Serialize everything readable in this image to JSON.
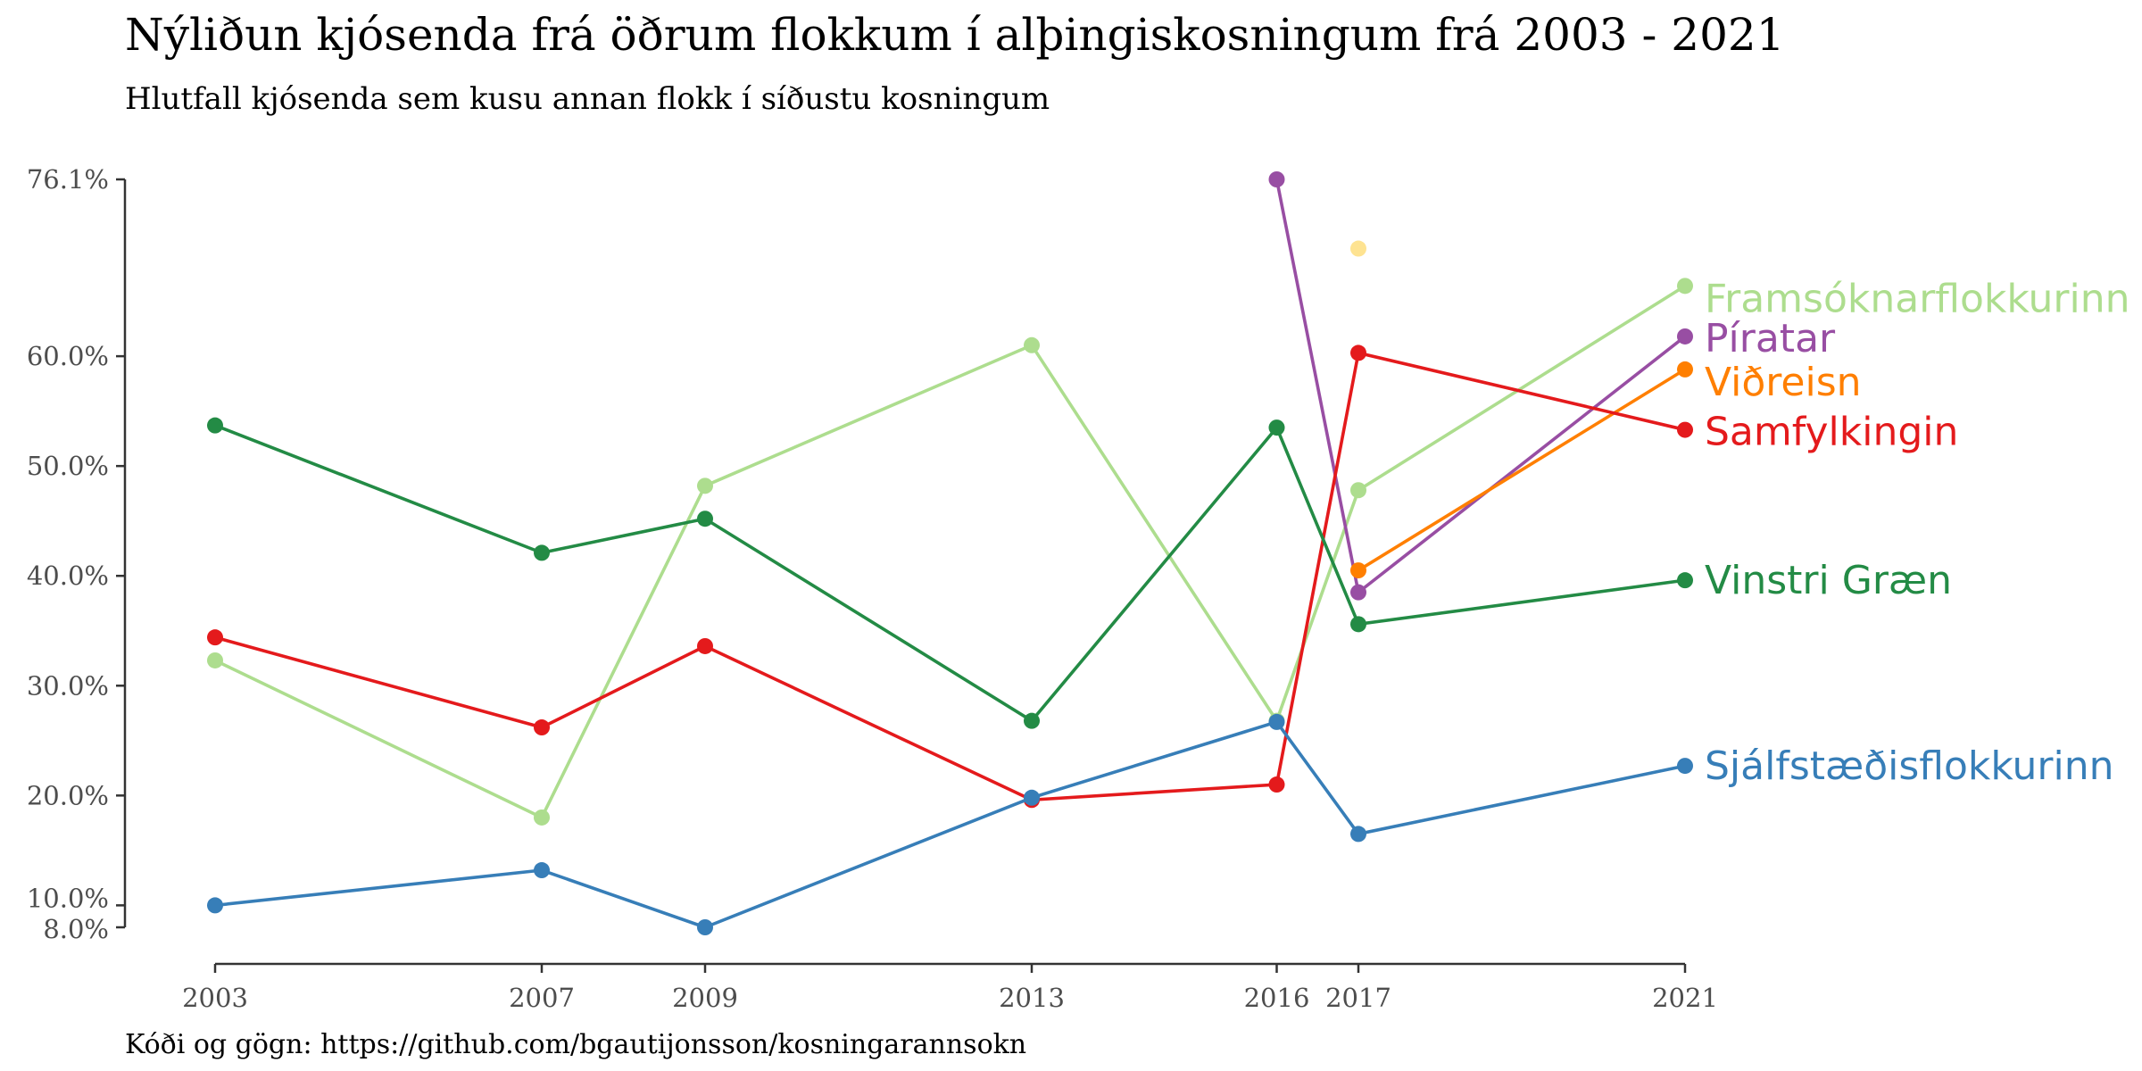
{
  "chart_data": {
    "type": "line",
    "title": "Nýliðun kjósenda frá öðrum flokkum í alþingiskosningum frá 2003 - 2021",
    "subtitle": "Hlutfall kjósenda sem kusu annan flokk í síðustu kosningum",
    "caption": "Kóði og gögn: https://github.com/bgautijonsson/kosningarannsokn",
    "xlabel": "",
    "ylabel": "",
    "x_ticks": [
      "2003",
      "2007",
      "2009",
      "2013",
      "2016",
      "2017",
      "2021"
    ],
    "xlim": [
      2003,
      2021
    ],
    "y_ticks": [
      {
        "value": 8.0,
        "label": "8.0%"
      },
      {
        "value": 10.0,
        "label": "10.0%"
      },
      {
        "value": 20.0,
        "label": "20.0%"
      },
      {
        "value": 30.0,
        "label": "30.0%"
      },
      {
        "value": 40.0,
        "label": "40.0%"
      },
      {
        "value": 50.0,
        "label": "50.0%"
      },
      {
        "value": 60.0,
        "label": "60.0%"
      },
      {
        "value": 76.1,
        "label": "76.1%"
      }
    ],
    "ylim": [
      8.0,
      76.1
    ],
    "legend": "direct labels at right end",
    "grid": false,
    "series": [
      {
        "name": "Framsóknarflokkurinn",
        "color": "#addd8e",
        "points": [
          [
            2003,
            32.3
          ],
          [
            2007,
            18.0
          ],
          [
            2009,
            48.2
          ],
          [
            2013,
            61.0
          ],
          [
            2016,
            26.8
          ],
          [
            2017,
            47.8
          ],
          [
            2021,
            66.4
          ]
        ]
      },
      {
        "name": "Píratar",
        "color": "#984ea3",
        "points": [
          [
            2016,
            76.1
          ],
          [
            2017,
            38.5
          ],
          [
            2021,
            61.8
          ]
        ]
      },
      {
        "name": "Viðreisn",
        "color": "#ff7f00",
        "points": [
          [
            2017,
            40.5
          ],
          [
            2021,
            58.8
          ]
        ]
      },
      {
        "name": "Samfylkingin",
        "color": "#e41a1c",
        "points": [
          [
            2003,
            34.4
          ],
          [
            2007,
            26.2
          ],
          [
            2009,
            33.6
          ],
          [
            2013,
            19.6
          ],
          [
            2016,
            21.0
          ],
          [
            2017,
            60.3
          ],
          [
            2021,
            53.3
          ]
        ]
      },
      {
        "name": "Vinstri Græn",
        "color": "#238b45",
        "points": [
          [
            2003,
            53.7
          ],
          [
            2007,
            42.1
          ],
          [
            2009,
            45.2
          ],
          [
            2013,
            26.8
          ],
          [
            2016,
            53.5
          ],
          [
            2017,
            35.6
          ],
          [
            2021,
            39.6
          ]
        ]
      },
      {
        "name": "Sjálfstæðisflokkurinn",
        "color": "#377eb8",
        "points": [
          [
            2003,
            10.0
          ],
          [
            2007,
            13.2
          ],
          [
            2009,
            8.0
          ],
          [
            2013,
            19.8
          ],
          [
            2016,
            26.7
          ],
          [
            2017,
            16.5
          ],
          [
            2021,
            22.7
          ]
        ]
      }
    ],
    "extra_points": [
      {
        "x": 2017,
        "y": 69.8,
        "color": "#fee391"
      }
    ]
  }
}
